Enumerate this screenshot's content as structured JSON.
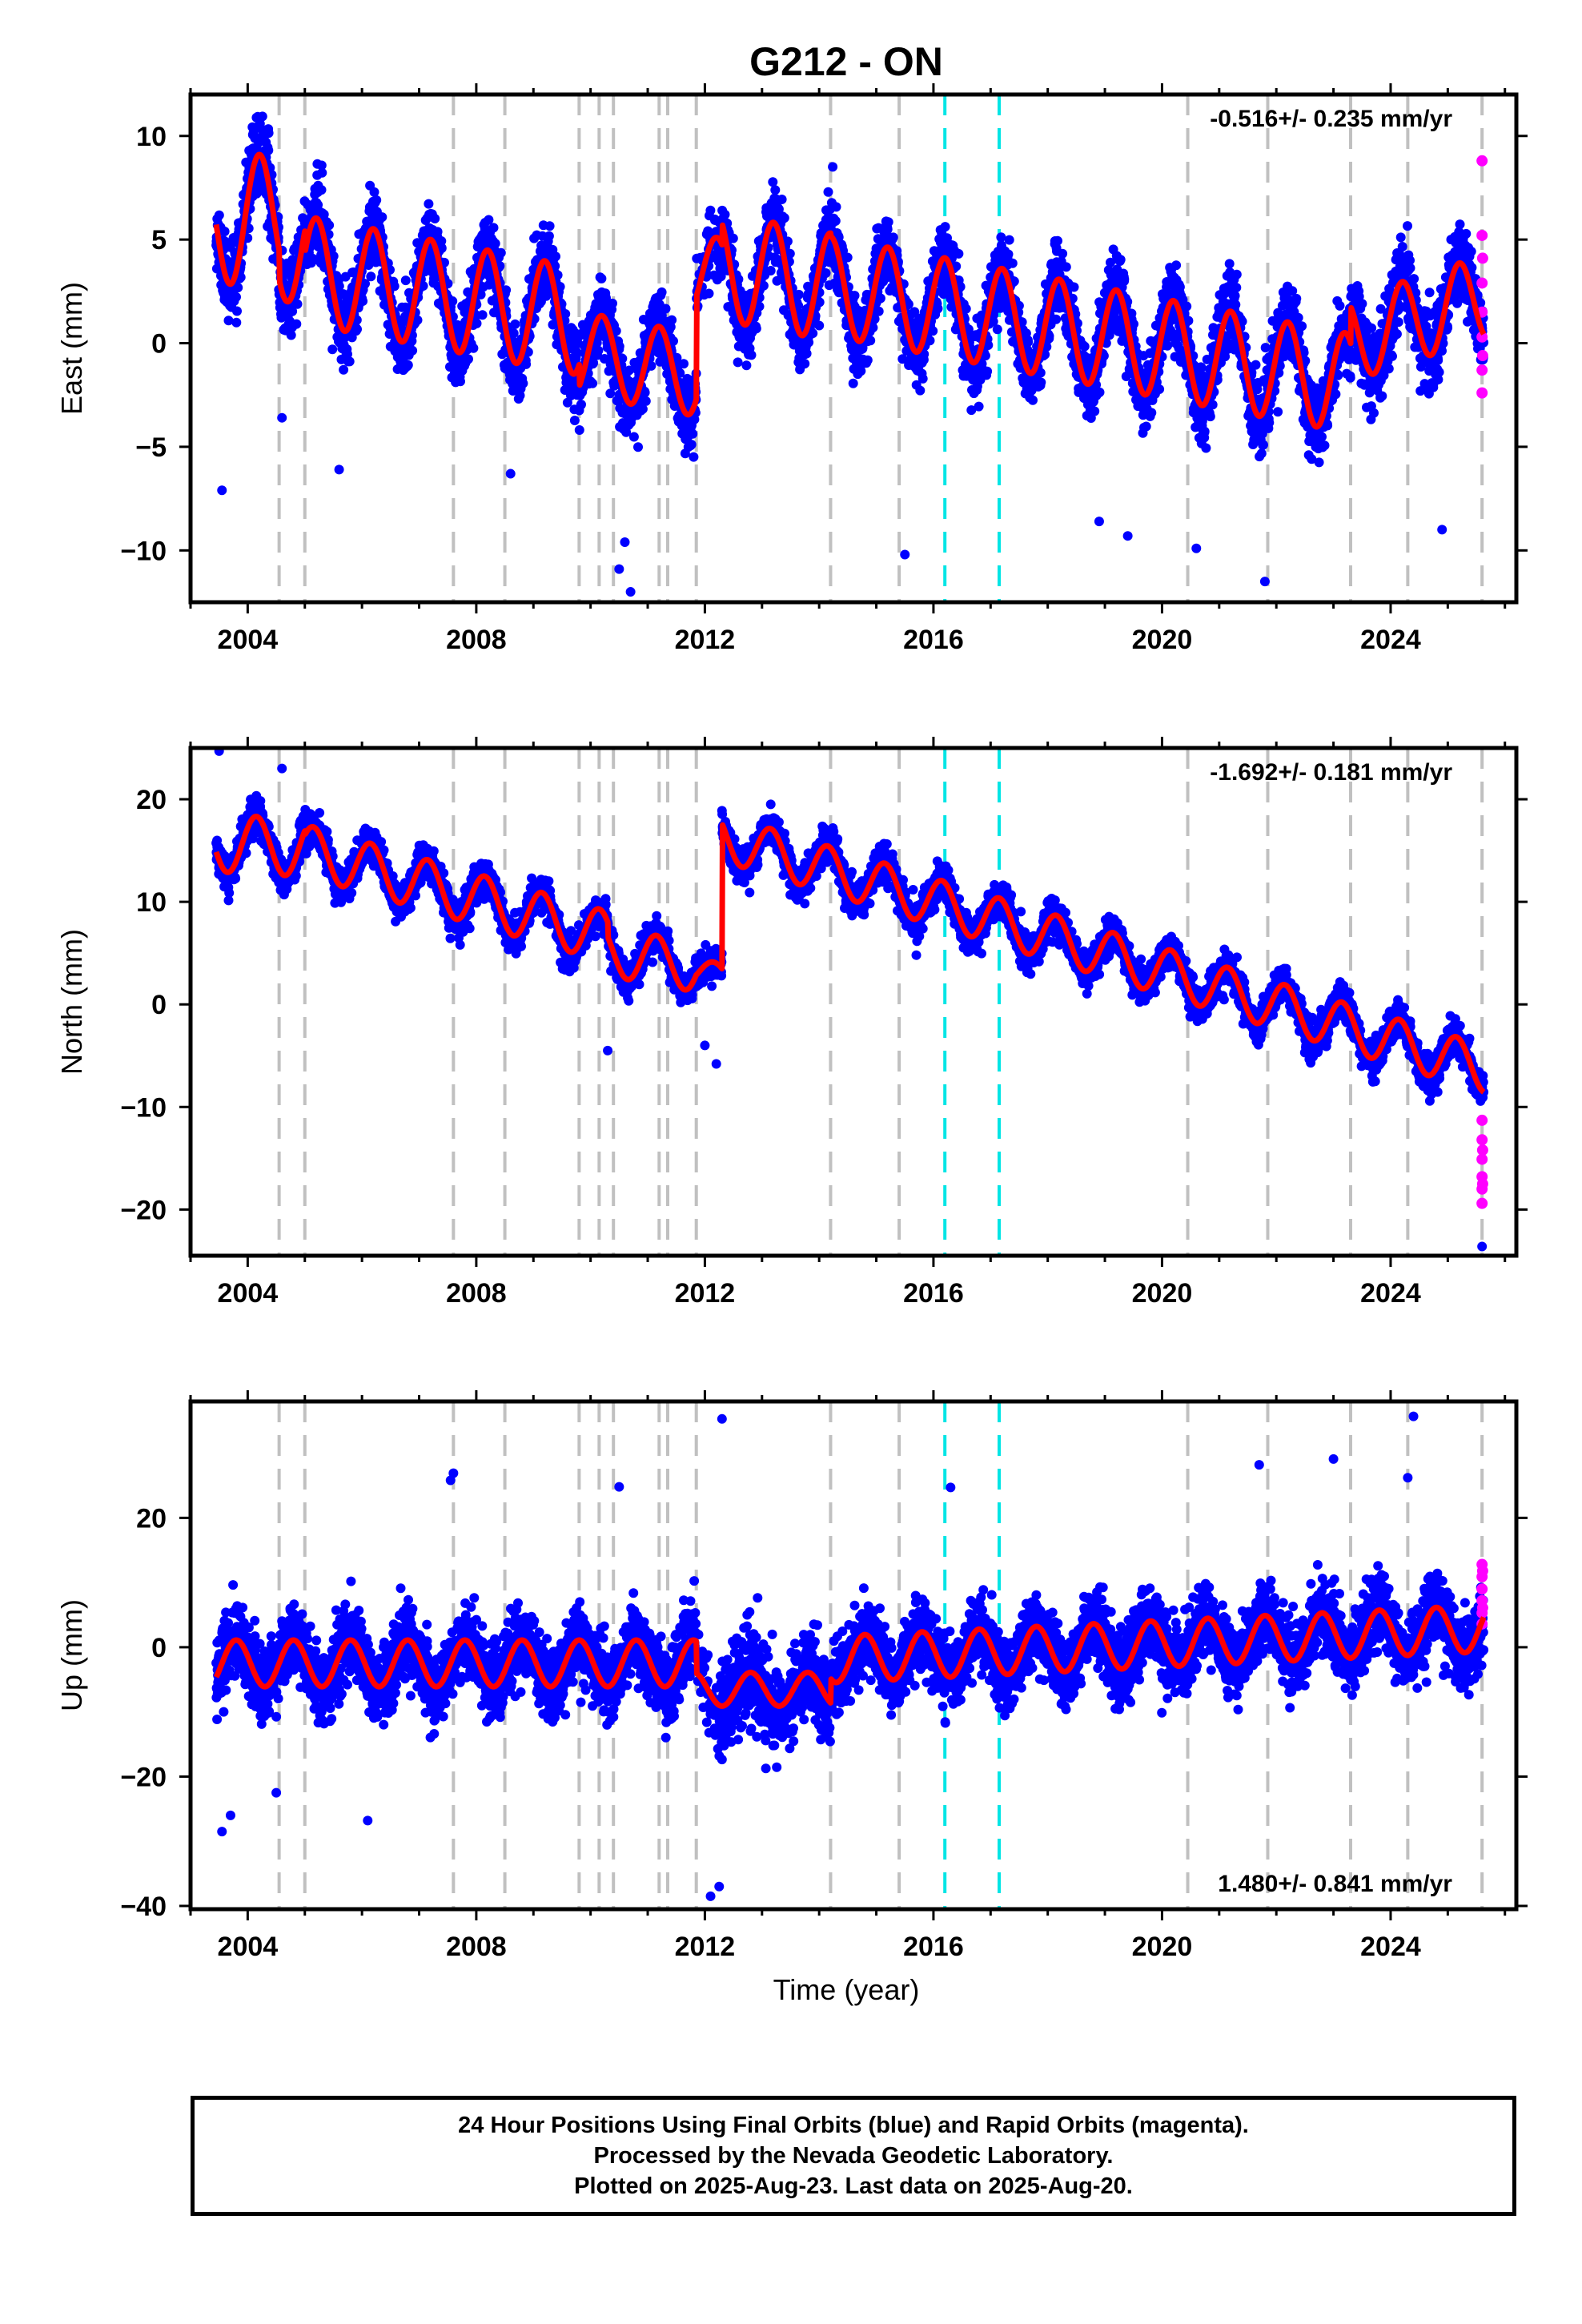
{
  "title": "G212 - ON",
  "xlabel": "Time (year)",
  "colors": {
    "final_orbits": "#0000ff",
    "rapid_orbits": "#ff00ff",
    "model_fit": "#ff0000",
    "equipment_change_lines": "#c0c0c0",
    "earthquake_lines": "#00e5e5"
  },
  "footer": {
    "line1": "24 Hour Positions Using Final Orbits (blue) and Rapid Orbits (magenta).",
    "line2": "Processed by the Nevada Geodetic Laboratory.",
    "line3": "Plotted on 2025-Aug-23. Last data on 2025-Aug-20."
  },
  "chart_data": [
    {
      "type": "scatter",
      "name": "East",
      "ylabel": "East (mm)",
      "rate": "-0.516+/- 0.235 mm/yr",
      "rate_position": "top-right",
      "xlim": [
        2003.0,
        2026.2
      ],
      "ylim": [
        -12.5,
        12
      ],
      "xticks": [
        2004,
        2008,
        2012,
        2016,
        2020,
        2024
      ],
      "yticks": [
        -10,
        -5,
        0,
        5,
        10
      ],
      "data_span": [
        2003.45,
        2025.63
      ],
      "model": {
        "segments": [
          {
            "start": 2003.45,
            "end": 2004.55,
            "offset": 6.0,
            "slope": 0.5,
            "amp": 3.0,
            "phase": 0.95
          },
          {
            "start": 2004.55,
            "end": 2005.0,
            "offset": 4.6,
            "slope": 0.0,
            "amp": 2.6,
            "phase": 0.95
          },
          {
            "start": 2005.0,
            "end": 2009.8,
            "offset": 2.3,
            "slope": -0.516,
            "amp": 2.6,
            "phase": 0.95
          },
          {
            "start": 2009.8,
            "end": 2011.85,
            "offset": -1.0,
            "slope": -0.516,
            "amp": 2.0,
            "phase": 0.95
          },
          {
            "start": 2011.85,
            "end": 2012.3,
            "offset": 3.3,
            "slope": 0.0,
            "amp": 1.8,
            "phase": 0.95
          },
          {
            "start": 2012.3,
            "end": 2014.2,
            "offset": 3.2,
            "slope": -0.516,
            "amp": 2.6,
            "phase": 0.95
          },
          {
            "start": 2014.2,
            "end": 2023.3,
            "offset": 0.4,
            "slope": -0.516,
            "amp": 2.4,
            "phase": 0.95
          },
          {
            "start": 2023.3,
            "end": 2025.63,
            "offset": 1.2,
            "slope": 0.9,
            "amp": 2.0,
            "phase": 0.95
          }
        ],
        "scatter_sd": 1.6
      },
      "rapid_points": [
        [
          2025.6,
          8.8
        ],
        [
          2025.6,
          5.2
        ],
        [
          2025.6,
          2.9
        ],
        [
          2025.6,
          1.5
        ],
        [
          2025.6,
          0.3
        ],
        [
          2025.6,
          -1.3
        ],
        [
          2025.6,
          -2.4
        ],
        [
          2025.61,
          4.1
        ],
        [
          2025.61,
          -0.6
        ]
      ],
      "outliers": [
        [
          2003.55,
          -7.1
        ],
        [
          2004.6,
          -3.6
        ],
        [
          2005.6,
          -6.1
        ],
        [
          2008.6,
          -6.3
        ],
        [
          2010.6,
          -9.6
        ],
        [
          2010.7,
          -12.0
        ],
        [
          2010.5,
          -10.9
        ],
        [
          2015.5,
          -10.2
        ],
        [
          2018.9,
          -8.6
        ],
        [
          2020.6,
          -9.9
        ],
        [
          2021.8,
          -11.5
        ],
        [
          2019.4,
          -9.3
        ],
        [
          2024.9,
          -9.0
        ]
      ]
    },
    {
      "type": "scatter",
      "name": "North",
      "ylabel": "North (mm)",
      "rate": "-1.692+/- 0.181 mm/yr",
      "rate_position": "top-right",
      "xlim": [
        2003.0,
        2026.2
      ],
      "ylim": [
        -24.5,
        25
      ],
      "xticks": [
        2004,
        2008,
        2012,
        2016,
        2020,
        2024
      ],
      "yticks": [
        -20,
        -10,
        0,
        10,
        20
      ],
      "data_span": [
        2003.45,
        2025.63
      ],
      "model": {
        "segments": [
          {
            "start": 2003.45,
            "end": 2005.0,
            "offset": 15.5,
            "slope": -0.3,
            "amp": 2.8,
            "phase": 0.9
          },
          {
            "start": 2005.0,
            "end": 2010.3,
            "offset": 10.8,
            "slope": -1.6,
            "amp": 2.5,
            "phase": 0.9
          },
          {
            "start": 2010.3,
            "end": 2011.85,
            "offset": 4.4,
            "slope": -1.0,
            "amp": 2.4,
            "phase": 0.9
          },
          {
            "start": 2011.85,
            "end": 2012.3,
            "offset": 3.0,
            "slope": -1.0,
            "amp": 1.2,
            "phase": 0.9
          },
          {
            "start": 2012.3,
            "end": 2025.63,
            "offset": 5.0,
            "slope": -1.692,
            "amp": 2.3,
            "phase": 0.9
          }
        ],
        "scatter_sd": 1.5
      },
      "rapid_points": [
        [
          2025.6,
          -11.3
        ],
        [
          2025.6,
          -13.2
        ],
        [
          2025.6,
          -15.1
        ],
        [
          2025.6,
          -16.8
        ],
        [
          2025.6,
          -18.0
        ],
        [
          2025.6,
          -19.4
        ],
        [
          2025.61,
          -14.2
        ],
        [
          2025.61,
          -17.5
        ]
      ],
      "outliers": [
        [
          2003.5,
          24.7
        ],
        [
          2004.6,
          23.0
        ],
        [
          2010.3,
          -4.5
        ],
        [
          2012.2,
          -5.8
        ],
        [
          2012.0,
          -4.0
        ],
        [
          2015.7,
          4.8
        ],
        [
          2025.6,
          -23.6
        ]
      ]
    },
    {
      "type": "scatter",
      "name": "Up",
      "ylabel": "Up (mm)",
      "rate": "1.480+/- 0.841 mm/yr",
      "rate_position": "bottom-right",
      "xlim": [
        2003.0,
        2026.2
      ],
      "ylim": [
        -40.5,
        38
      ],
      "xticks": [
        2004,
        2008,
        2012,
        2016,
        2020,
        2024
      ],
      "yticks": [
        -40,
        -20,
        0,
        20
      ],
      "data_span": [
        2003.45,
        2025.63
      ],
      "model": {
        "segments": [
          {
            "start": 2003.45,
            "end": 2011.85,
            "offset": -2.5,
            "slope": 0.0,
            "amp": 3.6,
            "phase": 0.55
          },
          {
            "start": 2011.85,
            "end": 2014.2,
            "offset": -6.5,
            "slope": 0.0,
            "amp": 2.6,
            "phase": 0.55
          },
          {
            "start": 2014.2,
            "end": 2025.63,
            "offset": 0.5,
            "slope": 0.42,
            "amp": 3.6,
            "phase": 0.55
          }
        ],
        "scatter_sd": 5.0
      },
      "rapid_points": [
        [
          2025.6,
          12.8
        ],
        [
          2025.6,
          10.9
        ],
        [
          2025.6,
          9.0
        ],
        [
          2025.6,
          7.2
        ],
        [
          2025.6,
          5.3
        ],
        [
          2025.6,
          3.6
        ],
        [
          2025.61,
          11.8
        ],
        [
          2025.61,
          6.1
        ]
      ],
      "outliers": [
        [
          2007.6,
          26.9
        ],
        [
          2007.55,
          25.8
        ],
        [
          2010.5,
          24.8
        ],
        [
          2012.3,
          35.3
        ],
        [
          2012.1,
          -38.5
        ],
        [
          2012.25,
          -37.0
        ],
        [
          2016.3,
          24.7
        ],
        [
          2021.7,
          28.2
        ],
        [
          2023.0,
          29.1
        ],
        [
          2024.3,
          26.2
        ],
        [
          2024.4,
          35.7
        ],
        [
          2003.55,
          -28.5
        ],
        [
          2003.7,
          -26.0
        ],
        [
          2006.1,
          -26.8
        ],
        [
          2004.5,
          -22.5
        ]
      ]
    }
  ],
  "event_lines": {
    "equipment_changes": [
      2004.55,
      2005.0,
      2007.6,
      2008.5,
      2009.8,
      2010.15,
      2010.4,
      2011.2,
      2011.35,
      2011.85,
      2014.2,
      2015.4,
      2020.45,
      2021.85,
      2023.3,
      2024.3,
      2025.6
    ],
    "earthquakes": [
      2016.2,
      2017.15
    ]
  }
}
